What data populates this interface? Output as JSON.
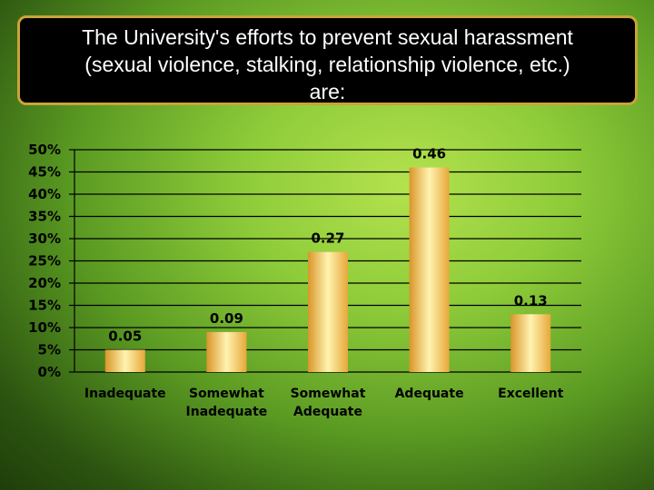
{
  "chart_data": {
    "type": "bar",
    "title": "The University's efforts to prevent sexual harassment\n(sexual violence, stalking, relationship violence, etc.)\nare:",
    "categories": [
      "Inadequate",
      "Somewhat\nInadequate",
      "Somewhat\nAdequate",
      "Adequate",
      "Excellent"
    ],
    "values": [
      0.05,
      0.09,
      0.27,
      0.46,
      0.13
    ],
    "data_labels": [
      "0.05",
      "0.09",
      "0.27",
      "0.46",
      "0.13"
    ],
    "yticks": [
      "0%",
      "5%",
      "10%",
      "15%",
      "20%",
      "25%",
      "30%",
      "35%",
      "40%",
      "45%",
      "50%"
    ],
    "ylim": [
      0,
      0.5
    ],
    "grid": true,
    "xlabel": "",
    "ylabel": "",
    "colors": {
      "bar_light": "#fff3b0",
      "bar_mid": "#f3c64c",
      "bar_dark": "#d9962a",
      "grid": "#000000"
    }
  }
}
